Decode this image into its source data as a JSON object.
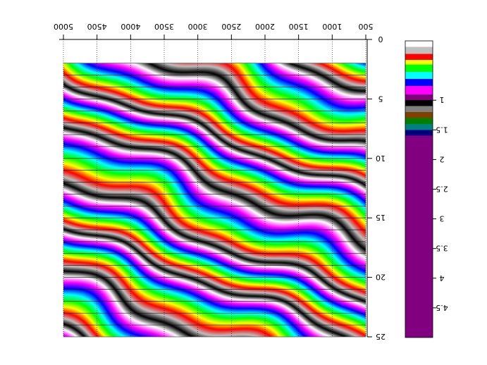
{
  "chart_data": {
    "type": "heatmap",
    "title": "",
    "xlabel": "",
    "ylabel": "",
    "x_axis": {
      "position": "top",
      "reversed": true,
      "range": [
        5000,
        500
      ],
      "ticks": [
        5000,
        4500,
        4000,
        3500,
        3000,
        2500,
        2000,
        1500,
        1000,
        500
      ],
      "tick_labels": [
        "5000",
        "4500",
        "4000",
        "3500",
        "3000",
        "2500",
        "2000",
        "1500",
        "1000",
        "500"
      ]
    },
    "y_axis": {
      "position": "right",
      "range": [
        0,
        25
      ],
      "ticks": [
        0,
        5,
        10,
        15,
        20,
        25
      ],
      "tick_labels": [
        "0",
        "5",
        "10",
        "15",
        "20",
        "25"
      ]
    },
    "data_extent": {
      "x": [
        5000,
        500
      ],
      "y": [
        2,
        25
      ]
    },
    "grid": true,
    "colorbar": {
      "position": "right",
      "range": [
        0,
        5
      ],
      "ticks": [
        1,
        1.5,
        2,
        2.5,
        3,
        3.5,
        4,
        4.5
      ],
      "tick_labels": [
        "1",
        "1.5",
        "2",
        "2.5",
        "3",
        "3.5",
        "4",
        "4.5"
      ],
      "segments": [
        {
          "from": 0.0,
          "to": 0.1,
          "color": "#ffffff"
        },
        {
          "from": 0.1,
          "to": 0.22,
          "color": "#bfbfbf"
        },
        {
          "from": 0.22,
          "to": 0.32,
          "color": "#ff0000"
        },
        {
          "from": 0.32,
          "to": 0.4,
          "color": "#ffff00"
        },
        {
          "from": 0.4,
          "to": 0.52,
          "color": "#00ff00"
        },
        {
          "from": 0.52,
          "to": 0.64,
          "color": "#00ffff"
        },
        {
          "from": 0.64,
          "to": 0.76,
          "color": "#0000ff"
        },
        {
          "from": 0.76,
          "to": 0.9,
          "color": "#ff00ff"
        },
        {
          "from": 0.9,
          "to": 1.0,
          "color": "#800080"
        },
        {
          "from": 1.0,
          "to": 1.1,
          "color": "#000000"
        },
        {
          "from": 1.1,
          "to": 1.2,
          "color": "#808080"
        },
        {
          "from": 1.2,
          "to": 1.3,
          "color": "#804000"
        },
        {
          "from": 1.3,
          "to": 1.4,
          "color": "#008000"
        },
        {
          "from": 1.4,
          "to": 1.5,
          "color": "#008080"
        },
        {
          "from": 1.5,
          "to": 1.6,
          "color": "#000080"
        },
        {
          "from": 1.6,
          "to": 5.0,
          "color": "#800080"
        }
      ]
    },
    "palette": [
      "#ff0000",
      "#ffff00",
      "#00ff00",
      "#00ffff",
      "#0000ff",
      "#ff00ff",
      "#ffffff",
      "#000000",
      "#bfbfbf"
    ]
  }
}
